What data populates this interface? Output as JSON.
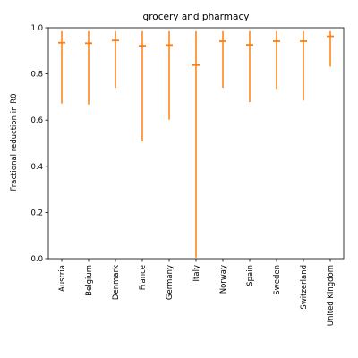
{
  "chart_data": {
    "type": "errorbar",
    "title": "grocery and pharmacy",
    "xlabel": "",
    "ylabel": "Fractional reduction in R0",
    "ylim": [
      0,
      1.0
    ],
    "yticks": [
      "0.0",
      "0.2",
      "0.4",
      "0.6",
      "0.8",
      "1.0"
    ],
    "grid": false,
    "color": "#ff7f0e",
    "categories": [
      "Austria",
      "Belgium",
      "Denmark",
      "France",
      "Germany",
      "Italy",
      "Norway",
      "Spain",
      "Sweden",
      "Switzerland",
      "United Kingdom"
    ],
    "median": [
      0.935,
      0.933,
      0.945,
      0.922,
      0.925,
      0.838,
      0.942,
      0.926,
      0.942,
      0.942,
      0.963
    ],
    "lower": [
      0.672,
      0.668,
      0.74,
      0.508,
      0.602,
      0.005,
      0.74,
      0.678,
      0.735,
      0.685,
      0.832
    ],
    "upper": [
      0.985,
      0.985,
      0.985,
      0.985,
      0.985,
      0.985,
      0.985,
      0.985,
      0.985,
      0.985,
      0.985
    ]
  }
}
